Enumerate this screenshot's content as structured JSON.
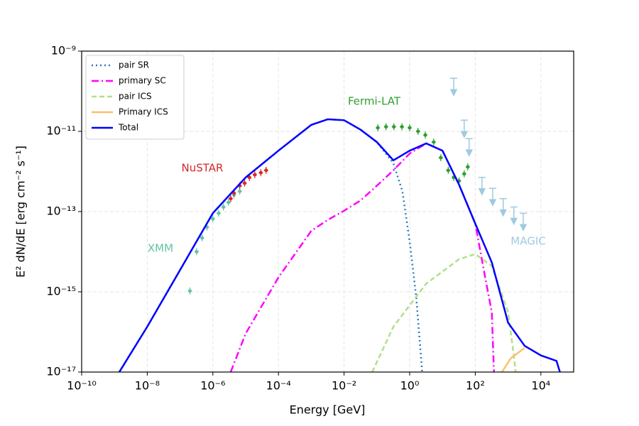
{
  "chart_data": {
    "type": "line",
    "xlabel": "Energy [GeV]",
    "ylabel": "E² dN/dE [erg cm⁻² s⁻¹]",
    "xscale": "log",
    "yscale": "log",
    "grid": true,
    "legend": "upper left",
    "xlim": [
      1e-10,
      100000.0
    ],
    "ylim": [
      1e-17,
      1e-09
    ],
    "xticks": [
      {
        "value": 1e-10,
        "label": "10⁻¹⁰"
      },
      {
        "value": 1e-08,
        "label": "10⁻⁸"
      },
      {
        "value": 1e-06,
        "label": "10⁻⁶"
      },
      {
        "value": 0.0001,
        "label": "10⁻⁴"
      },
      {
        "value": 0.01,
        "label": "10⁻²"
      },
      {
        "value": 1,
        "label": "10⁰"
      },
      {
        "value": 100,
        "label": "10²"
      },
      {
        "value": 10000,
        "label": "10⁴"
      }
    ],
    "yticks": [
      {
        "value": 1e-17,
        "label": "10⁻¹⁷"
      },
      {
        "value": 1e-15,
        "label": "10⁻¹⁵"
      },
      {
        "value": 1e-13,
        "label": "10⁻¹³"
      },
      {
        "value": 1e-11,
        "label": "10⁻¹¹"
      },
      {
        "value": 1e-09,
        "label": "10⁻⁹"
      }
    ],
    "series": [
      {
        "name": "pair SR",
        "color": "#2b7bba",
        "style": "dotted",
        "x": [
          1.4e-09,
          1e-08,
          1e-07,
          1e-06,
          1e-05,
          0.0001,
          0.001,
          0.0032,
          0.01,
          0.032,
          0.1,
          0.32,
          0.6,
          1,
          1.6,
          2.4
        ],
        "values": [
          1e-17,
          1.35e-16,
          3.5e-15,
          9.1e-14,
          7.1e-13,
          3.3e-12,
          1.45e-11,
          2e-11,
          1.9e-11,
          1.1e-11,
          5.4e-12,
          1.6e-12,
          3.2e-13,
          1.8e-14,
          6.9e-16,
          1e-17
        ]
      },
      {
        "name": "primary SC",
        "color": "#ff00ff",
        "style": "dashdot",
        "x": [
          3.5e-06,
          1e-05,
          0.0001,
          0.001,
          0.0032,
          0.01,
          0.032,
          0.1,
          0.32,
          1,
          3.2,
          10,
          32,
          100,
          200,
          320,
          370
        ],
        "values": [
          1e-17,
          9.1e-17,
          2.3e-15,
          3.3e-14,
          6.2e-14,
          1.05e-13,
          1.9e-13,
          4.4e-13,
          1.07e-12,
          2.8e-12,
          5e-12,
          3.3e-12,
          4.7e-13,
          5e-14,
          2.3e-15,
          3.1e-16,
          1e-17
        ]
      },
      {
        "name": "pair ICS",
        "color": "#b2df8a",
        "style": "dashed",
        "x": [
          0.072,
          0.32,
          3.2,
          32,
          100,
          320,
          1000,
          1500,
          1700
        ],
        "values": [
          1e-17,
          1.35e-16,
          1.6e-15,
          6.5e-15,
          8.7e-15,
          4.4e-15,
          3.1e-16,
          2.6e-17,
          1e-17
        ]
      },
      {
        "name": "Primary ICS",
        "color": "#fdbf6f",
        "style": "solid",
        "x": [
          650,
          1200,
          3200
        ],
        "values": [
          1e-17,
          2.2e-17,
          4e-17
        ]
      },
      {
        "name": "Total",
        "color": "#0000ff",
        "style": "solid",
        "x": [
          1.4e-09,
          1e-08,
          1e-07,
          1e-06,
          1e-05,
          0.0001,
          0.001,
          0.0032,
          0.01,
          0.032,
          0.1,
          0.32,
          1,
          3.2,
          10,
          32,
          100,
          320,
          1000,
          3200,
          10000,
          30000,
          38000
        ],
        "values": [
          1e-17,
          1.35e-16,
          3.5e-15,
          9.1e-14,
          7.1e-13,
          3.3e-12,
          1.45e-11,
          2e-11,
          1.9e-11,
          1.1e-11,
          5.4e-12,
          1.9e-12,
          3.3e-12,
          5e-12,
          3.3e-12,
          4.7e-13,
          5e-14,
          5.4e-15,
          1.7e-16,
          4.5e-17,
          2.6e-17,
          1.9e-17,
          1e-17
        ]
      }
    ],
    "datasets": [
      {
        "name": "XMM",
        "color": "#66c2a5",
        "marker": "point",
        "x": [
          2e-07,
          3.2e-07,
          4.7e-07,
          6.6e-07,
          1e-06,
          1.5e-06,
          2.1e-06,
          3e-06,
          4.4e-06,
          6.6e-06
        ],
        "values": [
          1.05e-15,
          1e-14,
          2.2e-14,
          4.1e-14,
          6.6e-14,
          9.1e-14,
          1.3e-13,
          1.7e-13,
          2.6e-13,
          3.2e-13
        ]
      },
      {
        "name": "NuSTAR",
        "color": "#d62728",
        "marker": "point",
        "x": [
          3.5e-06,
          4.4e-06,
          6.6e-06,
          9.3e-06,
          1.3e-05,
          1.9e-05,
          2.9e-05,
          4.2e-05
        ],
        "values": [
          2.1e-13,
          2.9e-13,
          4.4e-13,
          5.1e-13,
          7.1e-13,
          8.3e-13,
          9.3e-13,
          1.07e-12
        ]
      },
      {
        "name": "Fermi-LAT",
        "color": "#2ca02c",
        "marker": "point",
        "x": [
          0.107,
          0.19,
          0.33,
          0.58,
          1,
          1.8,
          3,
          5.4,
          8.9,
          15,
          22,
          32,
          46,
          59
        ],
        "values": [
          1.23e-11,
          1.3e-11,
          1.3e-11,
          1.3e-11,
          1.23e-11,
          1e-11,
          8.1e-12,
          5.4e-12,
          2.2e-12,
          1.07e-12,
          7.1e-13,
          5.8e-13,
          8.7e-13,
          1.3e-12
        ]
      },
      {
        "name": "MAGIC",
        "color": "#9ecae1",
        "marker": "upper-limit",
        "x": [
          22,
          46,
          65,
          160,
          340,
          710,
          1500,
          2900
        ],
        "values": [
          2.1e-10,
          1.9e-11,
          6.6e-12,
          7.1e-13,
          3.8e-13,
          2.1e-13,
          1.3e-13,
          9.1e-14
        ]
      }
    ]
  }
}
